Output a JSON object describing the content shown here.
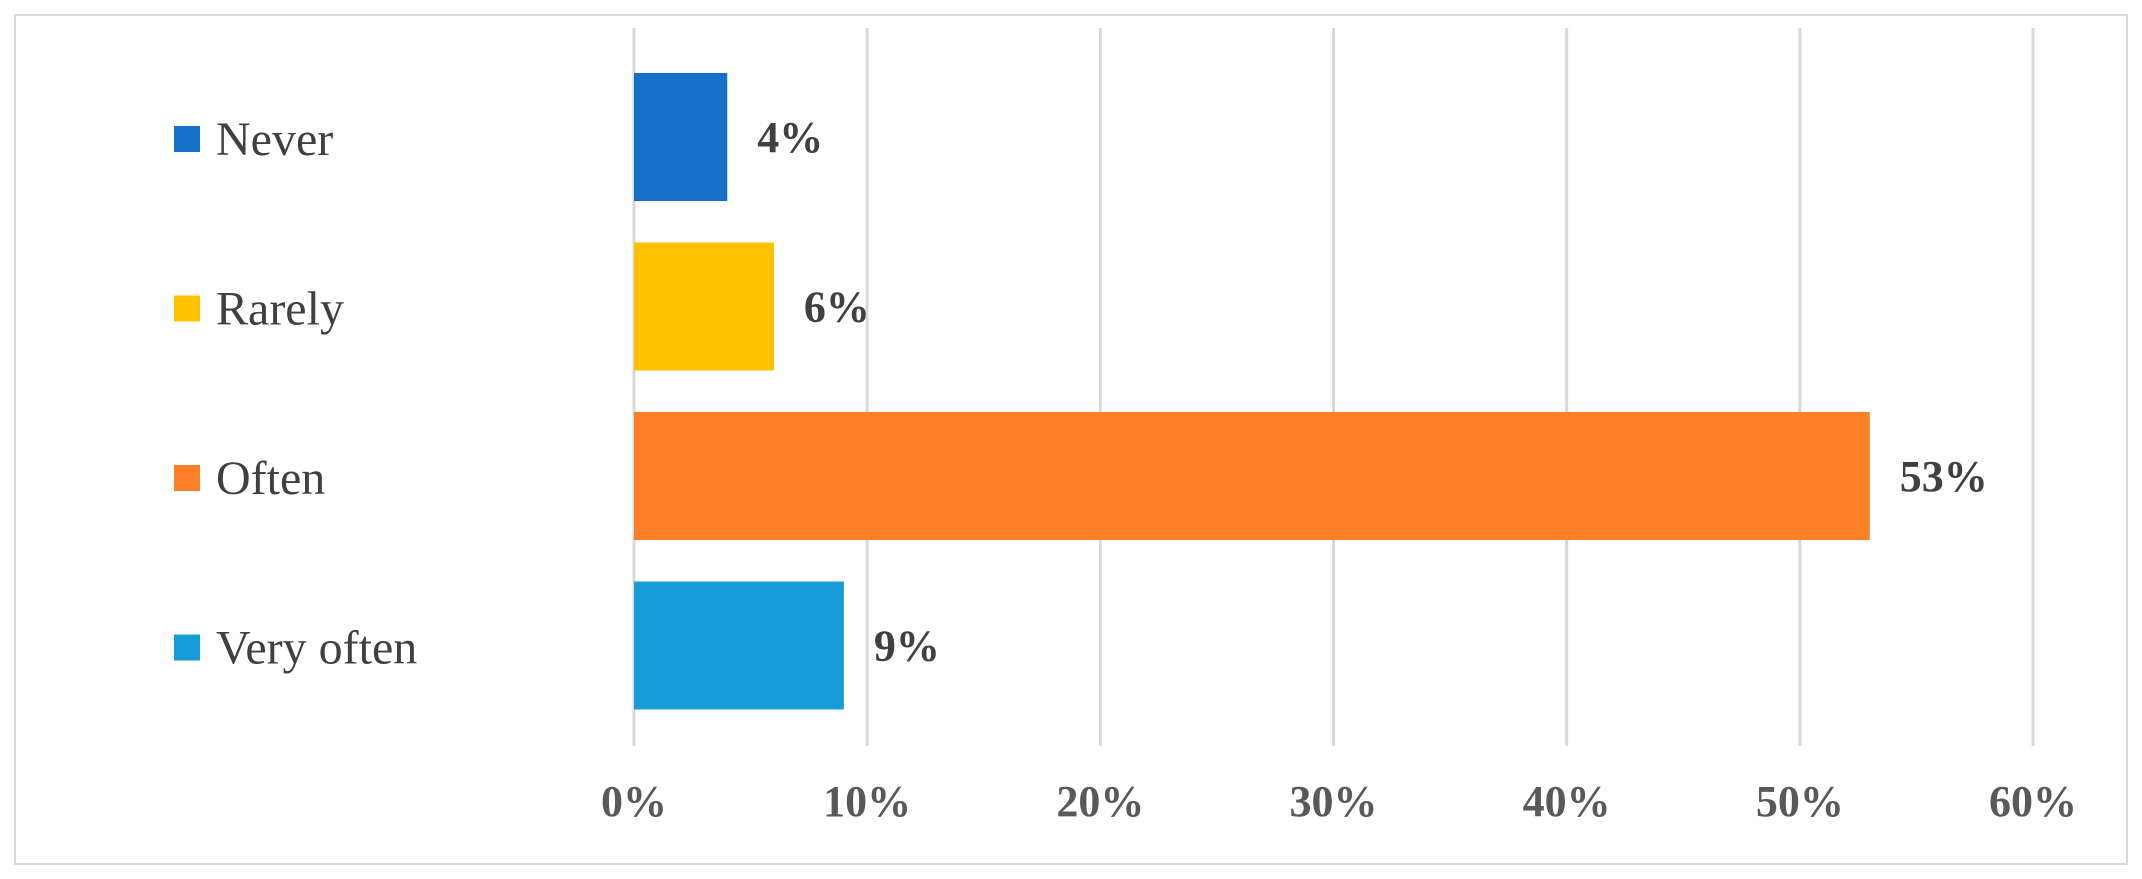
{
  "chart_data": {
    "type": "bar",
    "orientation": "horizontal",
    "title": "",
    "xlabel": "",
    "ylabel": "",
    "categories": [
      "Never",
      "Rarely",
      "Often",
      "Very often"
    ],
    "values": [
      4,
      6,
      53,
      9
    ],
    "data_labels": [
      "4%",
      "6%",
      "53%",
      "9%"
    ],
    "colors": [
      "#1670c8",
      "#ffc000",
      "#ff7f27",
      "#179cd8"
    ],
    "xlim": [
      0,
      60
    ],
    "x_ticks": [
      0,
      10,
      20,
      30,
      40,
      50,
      60
    ],
    "x_tick_labels": [
      "0%",
      "10%",
      "20%",
      "30%",
      "40%",
      "50%",
      "60%"
    ],
    "grid": true,
    "legend": {
      "placement": "left",
      "entries": [
        "Never",
        "Rarely",
        "Often",
        "Very often"
      ]
    }
  }
}
